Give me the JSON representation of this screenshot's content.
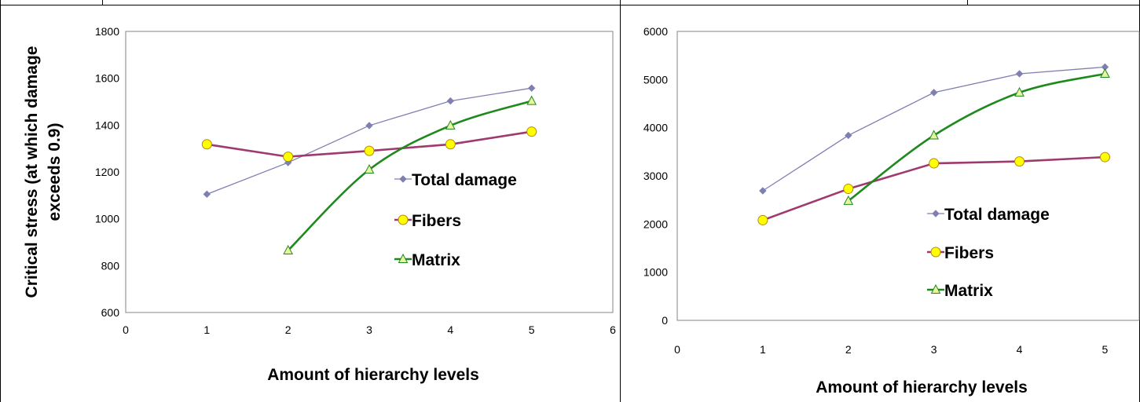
{
  "chart_data": [
    {
      "type": "line",
      "title": "",
      "xlabel": "Amount of hierarchy levels",
      "ylabel": [
        "Critical stress (at which damage",
        "exceeds 0.9)"
      ],
      "xlim": [
        0,
        6
      ],
      "ylim": [
        600,
        1800
      ],
      "x_ticks": [
        "0",
        "1",
        "2",
        "3",
        "4",
        "5",
        "6"
      ],
      "y_ticks": [
        "600",
        "800",
        "1000",
        "1200",
        "1400",
        "1600",
        "1800"
      ],
      "grid": false,
      "legend_position": "right",
      "series": [
        {
          "name": "Total damage",
          "color": "#7f7fb2",
          "marker": "diamond",
          "smooth": false,
          "x": [
            1,
            2,
            3,
            4,
            5
          ],
          "y": [
            1105,
            1240,
            1398,
            1503,
            1558
          ]
        },
        {
          "name": "Fibers",
          "color": "#9e3a6e",
          "marker": "circle",
          "smooth": false,
          "x": [
            1,
            2,
            3,
            4,
            5
          ],
          "y": [
            1318,
            1265,
            1290,
            1318,
            1372
          ]
        },
        {
          "name": "Matrix",
          "color": "#1e8a1e",
          "marker": "triangle",
          "smooth": true,
          "x": [
            2,
            3,
            4,
            5
          ],
          "y": [
            865,
            1210,
            1398,
            1503
          ]
        }
      ]
    },
    {
      "type": "line",
      "title": "",
      "xlabel": "Amount of hierarchy levels",
      "ylabel": "",
      "xlim": [
        0,
        5.4
      ],
      "ylim": [
        0,
        6000
      ],
      "x_ticks": [
        "0",
        "1",
        "2",
        "3",
        "4",
        "5"
      ],
      "y_ticks": [
        "0",
        "1000",
        "2000",
        "3000",
        "4000",
        "5000",
        "6000"
      ],
      "grid": false,
      "legend_position": "bottom-right",
      "series": [
        {
          "name": "Total damage",
          "color": "#7f7fb2",
          "marker": "diamond",
          "smooth": false,
          "x": [
            1,
            2,
            3,
            4,
            5
          ],
          "y": [
            2690,
            3840,
            4730,
            5120,
            5260
          ]
        },
        {
          "name": "Fibers",
          "color": "#9e3a6e",
          "marker": "circle",
          "smooth": false,
          "x": [
            1,
            2,
            3,
            4,
            5
          ],
          "y": [
            2080,
            2730,
            3260,
            3300,
            3390
          ]
        },
        {
          "name": "Matrix",
          "color": "#1e8a1e",
          "marker": "triangle",
          "smooth": true,
          "x": [
            2,
            3,
            4,
            5
          ],
          "y": [
            2480,
            3840,
            4730,
            5120
          ]
        }
      ]
    }
  ],
  "colors": {
    "frame": "#000000",
    "plot_border": "#868686",
    "marker_fill_circle": "#ffff00",
    "marker_fill_triangle": "#e8f5a0"
  }
}
